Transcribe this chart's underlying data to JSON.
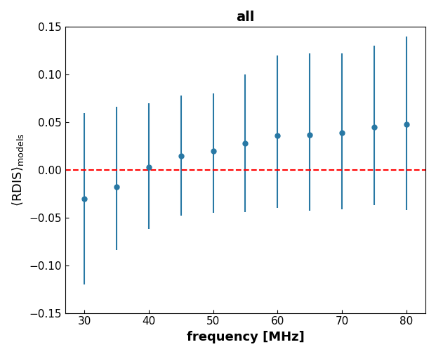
{
  "title": "all",
  "xlabel": "frequency [MHz]",
  "x": [
    30,
    35,
    40,
    45,
    50,
    55,
    60,
    65,
    70,
    75,
    80
  ],
  "y": [
    -0.03,
    -0.018,
    0.003,
    0.015,
    0.02,
    0.028,
    0.036,
    0.037,
    0.039,
    0.045,
    0.048
  ],
  "yerr_low": [
    0.09,
    0.066,
    0.065,
    0.063,
    0.065,
    0.072,
    0.076,
    0.08,
    0.08,
    0.082,
    0.09
  ],
  "yerr_high": [
    0.09,
    0.084,
    0.067,
    0.063,
    0.06,
    0.072,
    0.084,
    0.085,
    0.083,
    0.085,
    0.092
  ],
  "xlim": [
    27,
    83
  ],
  "ylim": [
    -0.15,
    0.15
  ],
  "yticks": [
    -0.15,
    -0.1,
    -0.05,
    0.0,
    0.05,
    0.1,
    0.15
  ],
  "xticks": [
    30,
    40,
    50,
    60,
    70,
    80
  ],
  "color": "#2878a4",
  "ref_line_color": "red",
  "ref_line_style": "--",
  "marker": "o",
  "markersize": 5,
  "capsize": 0,
  "elinewidth": 1.5,
  "title_fontsize": 14,
  "label_fontsize": 13,
  "tick_fontsize": 11
}
